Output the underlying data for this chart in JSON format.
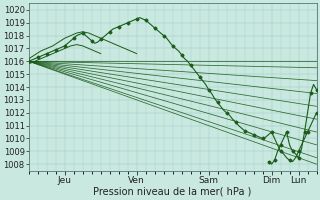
{
  "bg_color": "#c8e8e0",
  "grid_color": "#a0c8c0",
  "line_color": "#1a5c1a",
  "ylim": [
    1007.5,
    1020.5
  ],
  "yticks": [
    1008,
    1009,
    1010,
    1011,
    1012,
    1013,
    1014,
    1015,
    1016,
    1017,
    1018,
    1019,
    1020
  ],
  "xlabel": "Pression niveau de la mer( hPa )",
  "xlabel_fontsize": 7,
  "tick_label_fontsize": 6,
  "day_labels": [
    "Jeu",
    "Ven",
    "Sam",
    "Dim",
    "Lun"
  ],
  "day_positions": [
    24,
    72,
    120,
    162,
    180
  ],
  "xlim": [
    0,
    192
  ],
  "forecast_lines": [
    {
      "x": [
        0,
        192
      ],
      "y": [
        1016.0,
        1016.0
      ]
    },
    {
      "x": [
        0,
        192
      ],
      "y": [
        1016.0,
        1015.5
      ]
    },
    {
      "x": [
        0,
        192
      ],
      "y": [
        1016.0,
        1014.5
      ]
    },
    {
      "x": [
        0,
        192
      ],
      "y": [
        1016.0,
        1013.5
      ]
    },
    {
      "x": [
        0,
        192
      ],
      "y": [
        1016.0,
        1012.5
      ]
    },
    {
      "x": [
        0,
        192
      ],
      "y": [
        1016.0,
        1011.5
      ]
    },
    {
      "x": [
        0,
        192
      ],
      "y": [
        1016.0,
        1010.5
      ]
    },
    {
      "x": [
        0,
        192
      ],
      "y": [
        1016.0,
        1009.5
      ]
    },
    {
      "x": [
        0,
        192
      ],
      "y": [
        1016.0,
        1008.5
      ]
    },
    {
      "x": [
        0,
        192
      ],
      "y": [
        1016.0,
        1008.0
      ]
    }
  ],
  "main_line_x": [
    0,
    2,
    4,
    6,
    8,
    10,
    12,
    14,
    16,
    18,
    20,
    22,
    24,
    26,
    28,
    30,
    32,
    34,
    36,
    38,
    40,
    42,
    44,
    46,
    48,
    50,
    52,
    54,
    56,
    58,
    60,
    62,
    64,
    66,
    68,
    70,
    72,
    74,
    76,
    78,
    80,
    82,
    84,
    86,
    88,
    90,
    92,
    94,
    96,
    98,
    100,
    102,
    104,
    106,
    108,
    110,
    112,
    114,
    116,
    118,
    120,
    122,
    124,
    126,
    128,
    130,
    132,
    134,
    136,
    138,
    140,
    142,
    144,
    146,
    148,
    150,
    152,
    154,
    156,
    158,
    160,
    162,
    164,
    166,
    168,
    170,
    172,
    174,
    176,
    178,
    180,
    182,
    184,
    186,
    188,
    190,
    192
  ],
  "main_line_y": [
    1016.0,
    1016.1,
    1016.2,
    1016.3,
    1016.4,
    1016.5,
    1016.6,
    1016.7,
    1016.8,
    1016.9,
    1017.0,
    1017.1,
    1017.2,
    1017.4,
    1017.6,
    1017.8,
    1018.0,
    1018.1,
    1018.2,
    1018.0,
    1017.8,
    1017.6,
    1017.4,
    1017.5,
    1017.7,
    1017.9,
    1018.1,
    1018.3,
    1018.5,
    1018.6,
    1018.7,
    1018.8,
    1018.9,
    1019.0,
    1019.1,
    1019.2,
    1019.3,
    1019.4,
    1019.3,
    1019.2,
    1019.0,
    1018.8,
    1018.6,
    1018.4,
    1018.2,
    1018.0,
    1017.8,
    1017.5,
    1017.2,
    1017.0,
    1016.8,
    1016.5,
    1016.2,
    1016.0,
    1015.7,
    1015.4,
    1015.1,
    1014.8,
    1014.5,
    1014.2,
    1013.8,
    1013.5,
    1013.1,
    1012.8,
    1012.5,
    1012.2,
    1012.0,
    1011.8,
    1011.5,
    1011.3,
    1011.0,
    1010.8,
    1010.6,
    1010.5,
    1010.4,
    1010.3,
    1010.2,
    1010.1,
    1010.0,
    1010.1,
    1010.3,
    1010.5,
    1010.0,
    1009.5,
    1009.0,
    1008.8,
    1008.5,
    1008.3,
    1008.2,
    1008.5,
    1009.0,
    1009.5,
    1010.0,
    1010.5,
    1011.0,
    1011.5,
    1012.0
  ],
  "detail_line1_x": [
    0,
    4,
    8,
    12,
    16,
    20,
    24,
    28,
    32,
    36,
    40,
    44,
    48,
    52,
    56,
    60,
    64,
    68,
    72
  ],
  "detail_line1_y": [
    1016.2,
    1016.5,
    1016.8,
    1017.0,
    1017.2,
    1017.5,
    1017.8,
    1018.0,
    1018.2,
    1018.3,
    1018.2,
    1018.0,
    1017.8,
    1017.6,
    1017.4,
    1017.2,
    1017.0,
    1016.8,
    1016.6
  ],
  "detail_line2_x": [
    0,
    4,
    8,
    12,
    16,
    20,
    24,
    28,
    32,
    36,
    40,
    44,
    48
  ],
  "detail_line2_y": [
    1015.8,
    1016.0,
    1016.2,
    1016.4,
    1016.6,
    1016.8,
    1017.0,
    1017.2,
    1017.3,
    1017.2,
    1017.0,
    1016.8,
    1016.6
  ],
  "spike_x": [
    160,
    162,
    164,
    166,
    168,
    170,
    172,
    174,
    176,
    178,
    180,
    182,
    184,
    186,
    188,
    190,
    192
  ],
  "spike_y": [
    1008.2,
    1008.0,
    1008.3,
    1009.0,
    1009.5,
    1010.0,
    1010.5,
    1009.5,
    1009.0,
    1008.8,
    1008.5,
    1009.2,
    1010.5,
    1012.0,
    1013.5,
    1014.2,
    1013.8
  ]
}
